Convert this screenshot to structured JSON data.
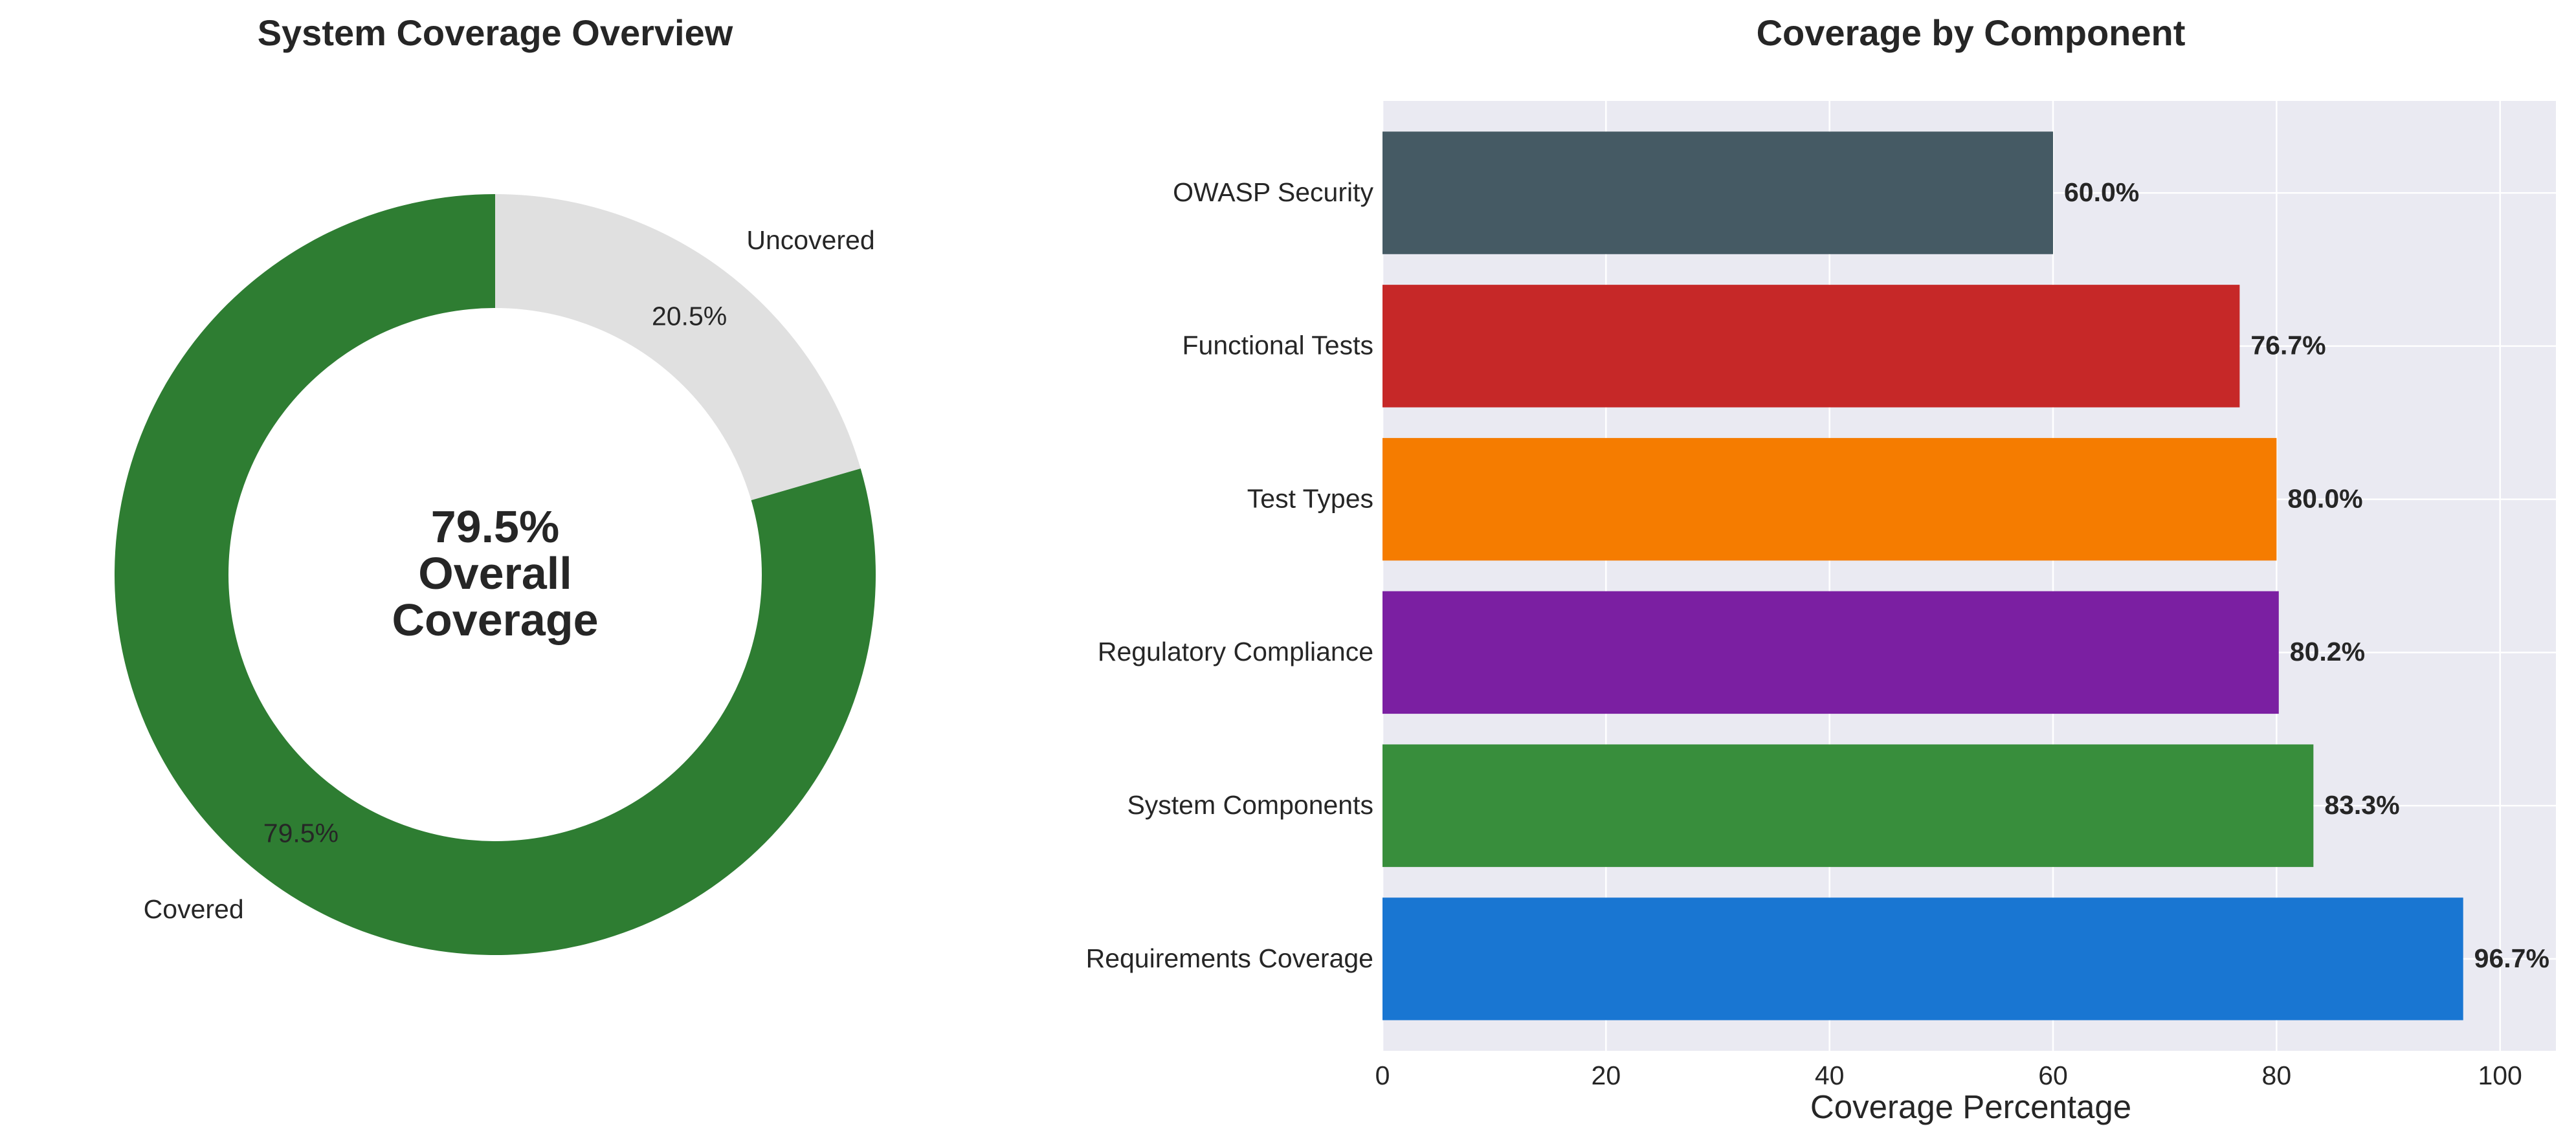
{
  "chart_data": [
    {
      "type": "pie",
      "style": "donut",
      "title": "System Coverage Overview",
      "slices": [
        {
          "label": "Covered",
          "value": 79.5,
          "pct_label": "79.5%",
          "color": "#2e7d32"
        },
        {
          "label": "Uncovered",
          "value": 20.5,
          "pct_label": "20.5%",
          "color": "#e0e0e0"
        }
      ],
      "center_text": [
        "79.5%",
        "Overall",
        "Coverage"
      ]
    },
    {
      "type": "bar",
      "orientation": "horizontal",
      "title": "Coverage by Component",
      "xlabel": "Coverage Percentage",
      "ylabel": "",
      "xlim": [
        0,
        105
      ],
      "xticks": [
        "0",
        "20",
        "40",
        "60",
        "80",
        "100"
      ],
      "grid": true,
      "categories": [
        "Requirements Coverage",
        "System Components",
        "Regulatory Compliance",
        "Test Types",
        "Functional Tests",
        "OWASP Security"
      ],
      "values": [
        96.7,
        83.3,
        80.2,
        80.0,
        76.7,
        60.0
      ],
      "value_labels": [
        "96.7%",
        "83.3%",
        "80.2%",
        "80.0%",
        "76.7%",
        "60.0%"
      ],
      "colors": [
        "#1976d2",
        "#388e3c",
        "#7b1fa2",
        "#f57c00",
        "#c62828",
        "#455a64"
      ]
    }
  ]
}
